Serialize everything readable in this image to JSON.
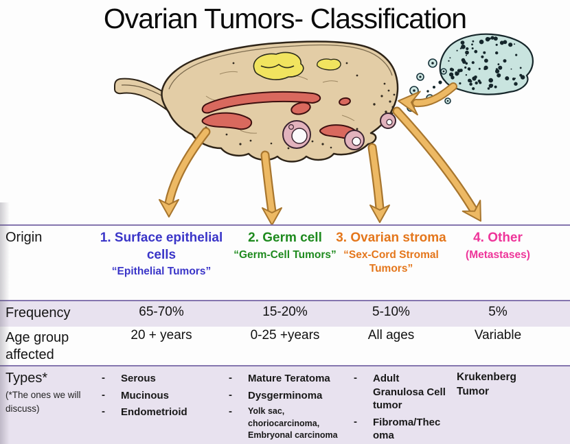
{
  "title": "Ovarian Tumors- Classification",
  "illustration": {
    "parts": [
      "ovary-cross-section",
      "ovarian-ligament",
      "corpus-luteum",
      "blood-vessels",
      "follicles",
      "released-ova",
      "fallopian-tube-fimbriae",
      "four-downward-classification-arrows",
      "metastasis-arrow-toward-ovary"
    ],
    "arrow_color": "#edb964"
  },
  "table": {
    "row_labels": {
      "origin": "Origin",
      "frequency": "Frequency",
      "age": "Age group affected",
      "types": "Types*",
      "types_note": "(*The ones we will discuss)"
    },
    "columns": [
      {
        "heading": "1. Surface epithelial cells",
        "subheading": "“Epithelial Tumors”",
        "color": "#3a35c8",
        "frequency": "65-70%",
        "age_group": "20 + years",
        "types": [
          "Serous",
          "Mucinous",
          "Endometrioid"
        ]
      },
      {
        "heading": "2. Germ cell",
        "subheading": "“Germ-Cell Tumors”",
        "color": "#1e8a1e",
        "frequency": "15-20%",
        "age_group": "0-25 +years",
        "types": [
          "Mature Teratoma",
          "Dysgerminoma",
          "Yolk sac, choriocarcinoma, Embryonal carcinoma"
        ]
      },
      {
        "heading": "3. Ovarian stroma",
        "subheading": "“Sex-Cord Stromal Tumors”",
        "color": "#e4761b",
        "frequency": "5-10%",
        "age_group": "All ages",
        "types": [
          "Adult Granulosa Cell tumor",
          "Fibroma/Thecoma"
        ]
      },
      {
        "heading": "4. Other",
        "subheading": "(Metastases)",
        "color": "#ee359a",
        "frequency": "5%",
        "age_group": "Variable",
        "types": [
          "Krukenberg Tumor"
        ]
      }
    ]
  }
}
